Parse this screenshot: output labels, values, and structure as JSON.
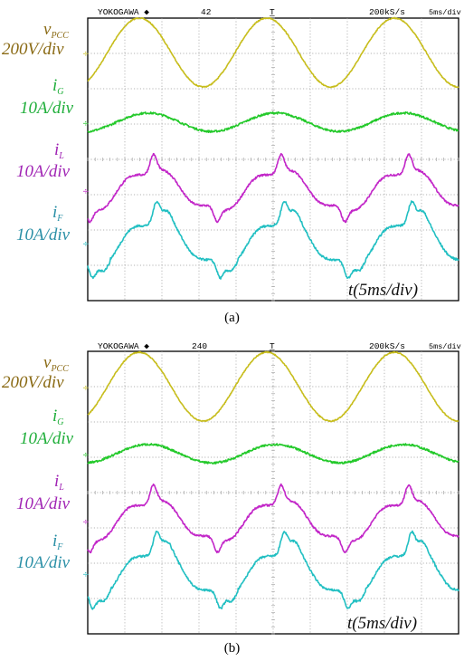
{
  "colors": {
    "v_pcc": "#c7bd1c",
    "i_g": "#23c92a",
    "i_l": "#c226c8",
    "i_f": "#21bfc2",
    "label_v": "#8a6a14",
    "label_g": "#1fae3a",
    "label_l": "#a024b4",
    "label_f": "#2a8fa6",
    "grid": "#9a9a9a",
    "frame": "#000000"
  },
  "labels": {
    "v_main": "v",
    "v_sub": "PCC",
    "v_scale": "200V/div",
    "g_main": "i",
    "g_sub": "G",
    "g_scale": "10A/div",
    "l_main": "i",
    "l_sub": "L",
    "l_scale": "10A/div",
    "f_main": "i",
    "f_sub": "F",
    "f_scale": "10A/div",
    "time": "t(5ms/div)"
  },
  "panels": [
    {
      "brand": "YOKOGAWA ◆",
      "counter": "42",
      "trigger": "T̲",
      "rate": "200kS/s",
      "tdiv": "5ms/div",
      "caption": "(a)"
    },
    {
      "brand": "YOKOGAWA ◆",
      "counter": "240",
      "trigger": "T̲",
      "rate": "200kS/s",
      "tdiv": "5ms/div",
      "caption": "(b)"
    }
  ],
  "chart_data": [
    {
      "type": "line",
      "title": "(a)",
      "xlabel": "t(5ms/div)",
      "x_unit": "ms",
      "xlim": [
        0,
        50
      ],
      "series": [
        {
          "name": "vPCC 200V/div",
          "note": "sinusoidal, period about 17 ms, peaks near 7, 24, 41 ms"
        },
        {
          "name": "iG 10A/div",
          "note": "small sinusoidal current in phase with vPCC"
        },
        {
          "name": "iL 10A/div",
          "note": "distorted load current with spikes near 9, 20, 26, 37, 43 ms"
        },
        {
          "name": "iF 10A/div",
          "note": "filter current, distorted, similar shape to iL"
        }
      ]
    },
    {
      "type": "line",
      "title": "(b)",
      "xlabel": "t(5ms/div)",
      "x_unit": "ms",
      "xlim": [
        0,
        50
      ],
      "series": [
        {
          "name": "vPCC 200V/div"
        },
        {
          "name": "iG 10A/div"
        },
        {
          "name": "iL 10A/div"
        },
        {
          "name": "iF 10A/div"
        }
      ]
    }
  ]
}
